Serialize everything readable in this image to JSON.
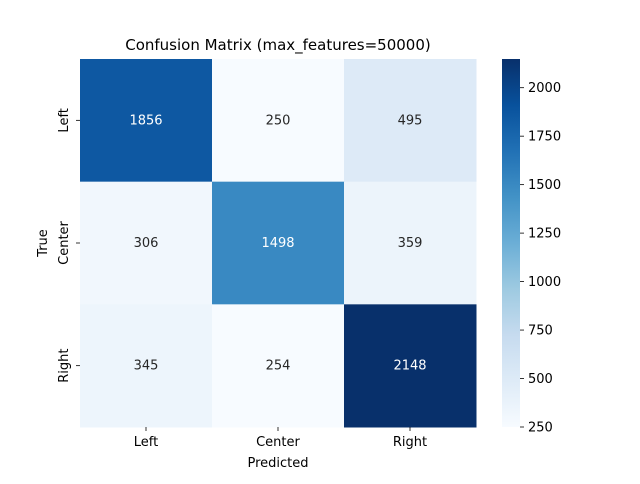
{
  "chart_data": {
    "type": "heatmap",
    "title": "Confusion Matrix (max_features=50000)",
    "xlabel": "Predicted",
    "ylabel": "True",
    "x_categories": [
      "Left",
      "Center",
      "Right"
    ],
    "y_categories": [
      "Left",
      "Center",
      "Right"
    ],
    "values": [
      [
        1856,
        250,
        495
      ],
      [
        306,
        1498,
        359
      ],
      [
        345,
        254,
        2148
      ]
    ],
    "colormap": "Blues",
    "color_range": [
      250,
      2148
    ],
    "colorbar_ticks": [
      250,
      500,
      750,
      1000,
      1250,
      1500,
      1750,
      2000
    ],
    "grid": false,
    "legend": "colorbar-right"
  }
}
